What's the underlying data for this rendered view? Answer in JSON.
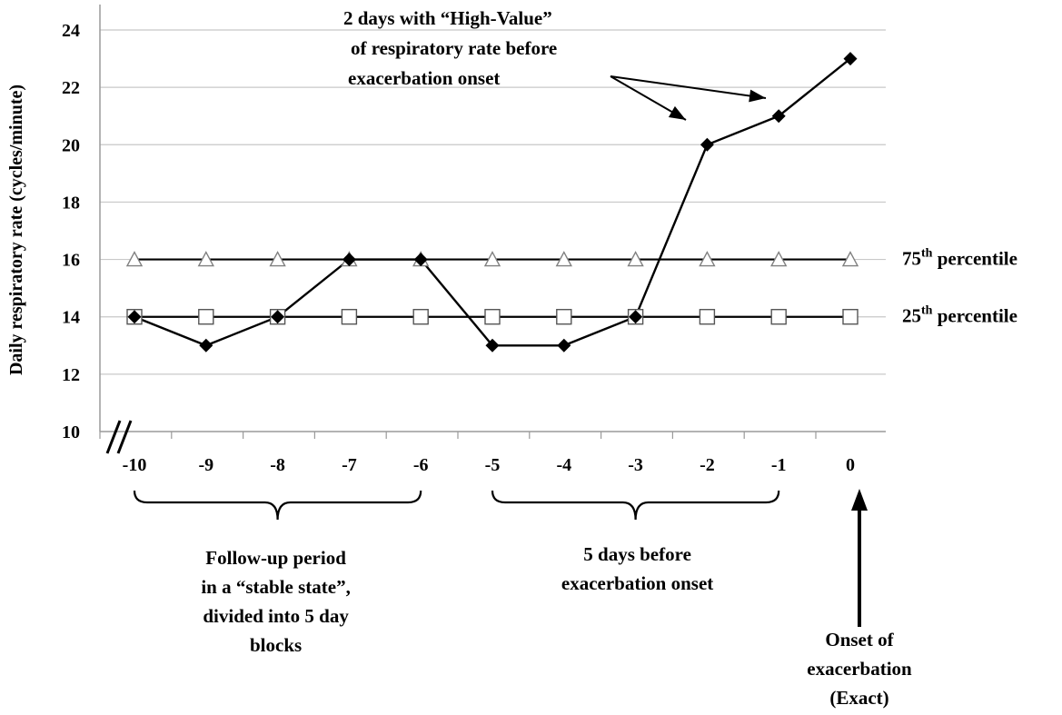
{
  "chart_data": {
    "type": "line",
    "title": "",
    "xlabel": "",
    "ylabel": "Daily respiratory  rate (cycles/minute)",
    "x": [
      -10,
      -9,
      -8,
      -7,
      -6,
      -5,
      -4,
      -3,
      -2,
      -1,
      0
    ],
    "x_tick_labels": [
      "-10",
      "-9",
      "-8",
      "-7",
      "-6",
      "-5",
      "-4",
      "-3",
      "-2",
      "-1",
      "0"
    ],
    "ylim": [
      10,
      24
    ],
    "y_ticks": [
      10,
      12,
      14,
      16,
      18,
      20,
      22,
      24
    ],
    "y_tick_labels": [
      "10",
      "12",
      "14",
      "16",
      "18",
      "20",
      "22",
      "24"
    ],
    "grid": true,
    "axis_break": true,
    "series": [
      {
        "key": "daily",
        "marker": "filled-diamond",
        "color": "#000000",
        "values": [
          14,
          13,
          14,
          16,
          16,
          13,
          13,
          14,
          20,
          21,
          23
        ]
      },
      {
        "key": "p75",
        "name": "75th percentile",
        "name_main": "75",
        "name_sup": "th",
        "name_rest": " percentile",
        "marker": "open-triangle",
        "color": "#000000",
        "values": [
          16,
          16,
          16,
          16,
          16,
          16,
          16,
          16,
          16,
          16,
          16
        ]
      },
      {
        "key": "p25",
        "name": "25th percentile",
        "name_main": "25",
        "name_sup": "th",
        "name_rest": " percentile",
        "marker": "open-square",
        "color": "#000000",
        "values": [
          14,
          14,
          14,
          14,
          14,
          14,
          14,
          14,
          14,
          14,
          14
        ]
      }
    ],
    "annotations": {
      "high_value": [
        "2 days with  “High-Value”",
        "of respiratory  rate before",
        "exacerbation onset"
      ],
      "high_value_targets": [
        -2,
        -1
      ],
      "stable_period": {
        "from": -10,
        "to": -6,
        "lines": [
          "Follow-up  period",
          "in a “stable state”,",
          "divided into 5 day",
          "blocks"
        ]
      },
      "before_onset": {
        "from": -5,
        "to": -1,
        "lines": [
          "5 days before",
          "exacerbation onset"
        ]
      },
      "onset": {
        "at": 0,
        "lines": [
          "Onset of",
          "exacerbation",
          "(Exact)"
        ]
      }
    }
  }
}
